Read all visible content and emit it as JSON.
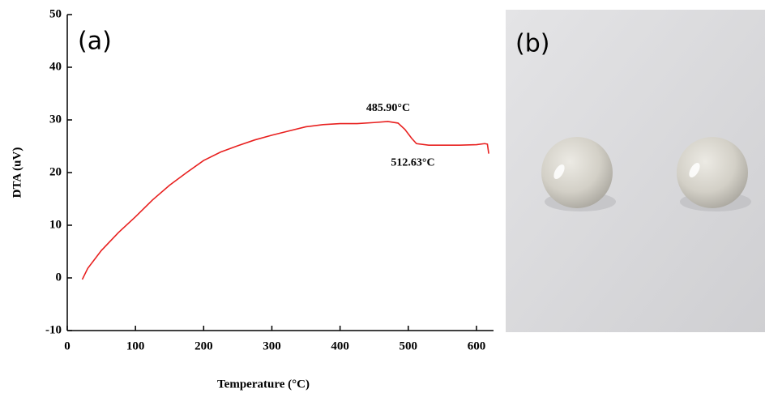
{
  "chart_data": {
    "type": "line",
    "panel_label": "(a)",
    "x_label": "Temperature (°C)",
    "y_label": "DTA (uV)",
    "x": [
      22,
      30,
      50,
      75,
      100,
      125,
      150,
      175,
      200,
      225,
      250,
      275,
      300,
      325,
      350,
      375,
      400,
      425,
      450,
      470,
      485,
      495,
      505,
      512,
      530,
      550,
      575,
      600,
      612,
      616,
      618
    ],
    "series": [
      {
        "color": "#e8201f",
        "values": [
          -0.3,
          1.8,
          5.2,
          8.6,
          11.6,
          14.8,
          17.6,
          20.0,
          22.3,
          23.9,
          25.1,
          26.2,
          27.1,
          27.9,
          28.7,
          29.1,
          29.3,
          29.3,
          29.5,
          29.7,
          29.4,
          28.2,
          26.5,
          25.5,
          25.2,
          25.2,
          25.2,
          25.3,
          25.5,
          25.4,
          23.6
        ]
      }
    ],
    "annotations": [
      {
        "text": "485.90°C",
        "x": 485.9,
        "y": 29.4
      },
      {
        "text": "512.63°C",
        "x": 512.63,
        "y": 25.5
      }
    ],
    "xlim": [
      0,
      625
    ],
    "ylim": [
      -10,
      50
    ],
    "xticks": [
      0,
      100,
      200,
      300,
      400,
      500,
      600
    ],
    "yticks": [
      -10,
      0,
      10,
      20,
      30,
      40,
      50
    ]
  },
  "photo": {
    "panel_label": "(b)"
  }
}
